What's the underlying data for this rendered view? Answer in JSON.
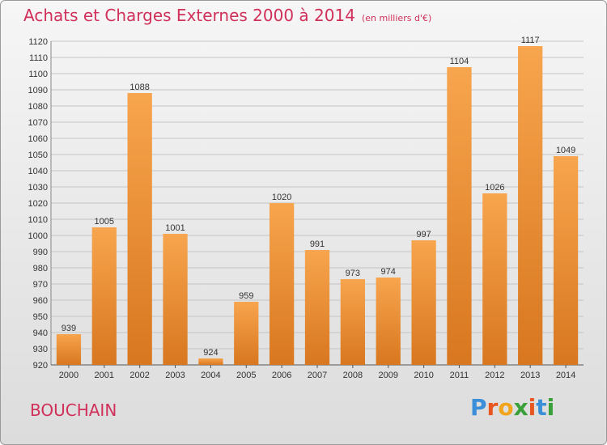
{
  "header": {
    "title": "Achats et Charges Externes 2000 à 2014",
    "subtitle": "(en milliers d'€)"
  },
  "footer": {
    "town": "BOUCHAIN",
    "logo_letters": [
      "P",
      "r",
      "o",
      "x",
      "i",
      "t",
      "i"
    ]
  },
  "colors": {
    "accent": "#d0305a",
    "bar_light": "#f7a54e",
    "bar_dark": "#d8771f",
    "logo": [
      "#3a8fd8",
      "#e8551f",
      "#f2a51c",
      "#3aa03a",
      "#e8551f",
      "#3a8fd8",
      "#3aa03a"
    ]
  },
  "chart_data": {
    "type": "bar",
    "title": "Achats et Charges Externes 2000 à 2014",
    "subtitle": "(en milliers d'€)",
    "categories": [
      "2000",
      "2001",
      "2002",
      "2003",
      "2004",
      "2005",
      "2006",
      "2007",
      "2008",
      "2009",
      "2010",
      "2011",
      "2012",
      "2013",
      "2014"
    ],
    "values": [
      939,
      1005,
      1088,
      1001,
      924,
      959,
      1020,
      991,
      973,
      974,
      997,
      1104,
      1026,
      1117,
      1049
    ],
    "ylim": [
      920,
      1120
    ],
    "yticks": [
      920,
      930,
      940,
      950,
      960,
      970,
      980,
      990,
      1000,
      1010,
      1020,
      1030,
      1040,
      1050,
      1060,
      1070,
      1080,
      1090,
      1100,
      1110,
      1120
    ],
    "grid": true,
    "xlabel": "",
    "ylabel": ""
  }
}
